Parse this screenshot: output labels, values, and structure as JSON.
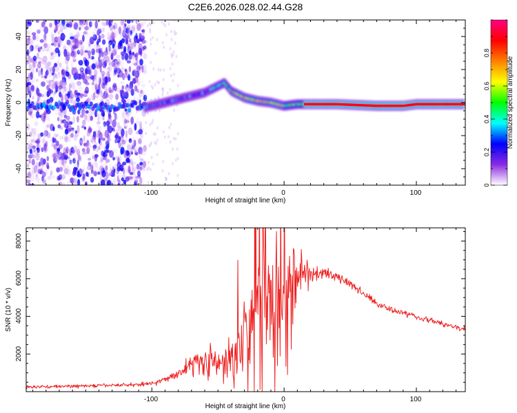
{
  "title": "C2E6.2026.028.02.44.G28",
  "chart_data": [
    {
      "type": "heatmap",
      "name": "spectrogram",
      "xlabel": "Height of straight line (km)",
      "ylabel": "Frequency (Hz)",
      "xlim": [
        -195,
        137
      ],
      "ylim": [
        -50,
        50
      ],
      "x_ticks": [
        -100,
        0,
        100
      ],
      "y_ticks": [
        -40,
        -20,
        0,
        20,
        40
      ],
      "noise_region_x": [
        -195,
        -105
      ],
      "ridge": {
        "x": [
          -105,
          -90,
          -75,
          -60,
          -50,
          -45,
          -40,
          -30,
          -20,
          -10,
          0,
          10,
          40,
          70,
          90,
          100,
          137
        ],
        "y": [
          -3,
          0,
          3,
          6,
          10,
          12,
          7,
          3,
          1,
          0,
          -2,
          -1,
          -1,
          -2,
          -2,
          -1,
          -1
        ]
      },
      "colorbar": {
        "label": "Normalized spectral amplitude",
        "range": [
          0,
          1
        ],
        "ticks": [
          0.0,
          0.2,
          0.4,
          0.6,
          0.8
        ],
        "colors": [
          "#ffffff",
          "#8a2be2",
          "#0000ff",
          "#00ffff",
          "#00ff00",
          "#ffff00",
          "#ff8000",
          "#ff0000",
          "#ff0080"
        ]
      }
    },
    {
      "type": "line",
      "name": "snr",
      "xlabel": "Height of straight line (km)",
      "ylabel": "SNR (10 * v/v)",
      "xlim": [
        -195,
        137
      ],
      "ylim": [
        0,
        8700
      ],
      "x_ticks": [
        -100,
        0,
        100
      ],
      "y_ticks": [
        2000,
        4000,
        6000,
        8000
      ],
      "color": "#ee2222",
      "envelope": {
        "x": [
          -195,
          -150,
          -110,
          -95,
          -85,
          -75,
          -65,
          -55,
          -45,
          -35,
          -28,
          -20,
          -10,
          0,
          10,
          20,
          30,
          40,
          50,
          60,
          70,
          80,
          90,
          100,
          110,
          120,
          130,
          137
        ],
        "y": [
          250,
          300,
          380,
          500,
          800,
          1200,
          1700,
          1600,
          1300,
          2400,
          3800,
          4800,
          5200,
          5600,
          6000,
          6200,
          6300,
          6100,
          5700,
          5200,
          4700,
          4400,
          4200,
          4000,
          3800,
          3600,
          3400,
          3300
        ]
      },
      "spread": {
        "x": [
          -195,
          -100,
          -80,
          -60,
          -50,
          -40,
          -30,
          -20,
          -10,
          0,
          10,
          20,
          30,
          60,
          137
        ],
        "y": [
          80,
          100,
          250,
          900,
          700,
          1400,
          2400,
          2800,
          2600,
          2500,
          1400,
          700,
          300,
          200,
          150
        ]
      }
    }
  ]
}
